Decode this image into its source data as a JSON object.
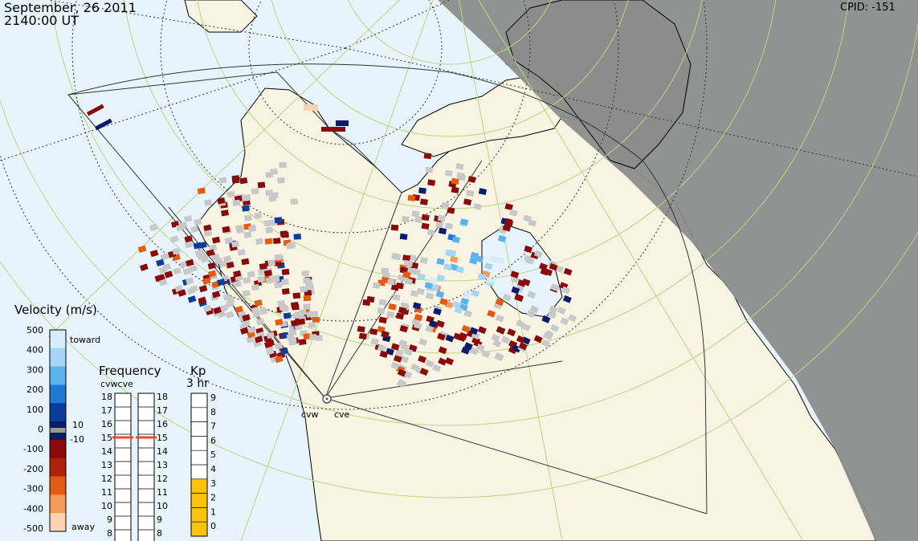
{
  "header": {
    "date": "September, 26 2011",
    "time": "2140:00 UT",
    "cpid": "CPID:  -151"
  },
  "radars": [
    {
      "code": "cvw"
    },
    {
      "code": "cve"
    }
  ],
  "velocity_scale": {
    "title": "Velocity (m/s)",
    "ticks": [
      "500",
      "400",
      "300",
      "200",
      "100",
      "0",
      "-100",
      "-200",
      "-300",
      "-400",
      "-500"
    ],
    "toward_label": "toward",
    "away_label": "away",
    "pos_small": "10",
    "neg_small": "-10",
    "colors": [
      "#d6ecfa",
      "#a6d6f5",
      "#5ab2ee",
      "#1f78d4",
      "#0a3c9c",
      "#0a1a6c",
      "#8a0a0a",
      "#b0200a",
      "#e35a10",
      "#f59a5a",
      "#fbd2b4"
    ]
  },
  "frequency": {
    "title": "Frequency",
    "sublabel": "cvwcve",
    "ticks": [
      "18",
      "17",
      "16",
      "15",
      "14",
      "13",
      "12",
      "11",
      "10",
      "9",
      "8"
    ],
    "cvw_value": 15,
    "cve_value": 15,
    "marker_color": "#e0502a"
  },
  "kp": {
    "title": "Kp",
    "sublabel": "3 hr",
    "ticks": [
      "9",
      "8",
      "7",
      "6",
      "5",
      "4",
      "3",
      "2",
      "1",
      "0"
    ],
    "value": 4,
    "fill_color": "#ffc20a"
  },
  "map": {
    "ocean_color": "#e8f4fb",
    "land_color": "#f7f4e3",
    "night_color": "#8c8c8c",
    "grey_scatter_color": "#c8c8c8"
  }
}
